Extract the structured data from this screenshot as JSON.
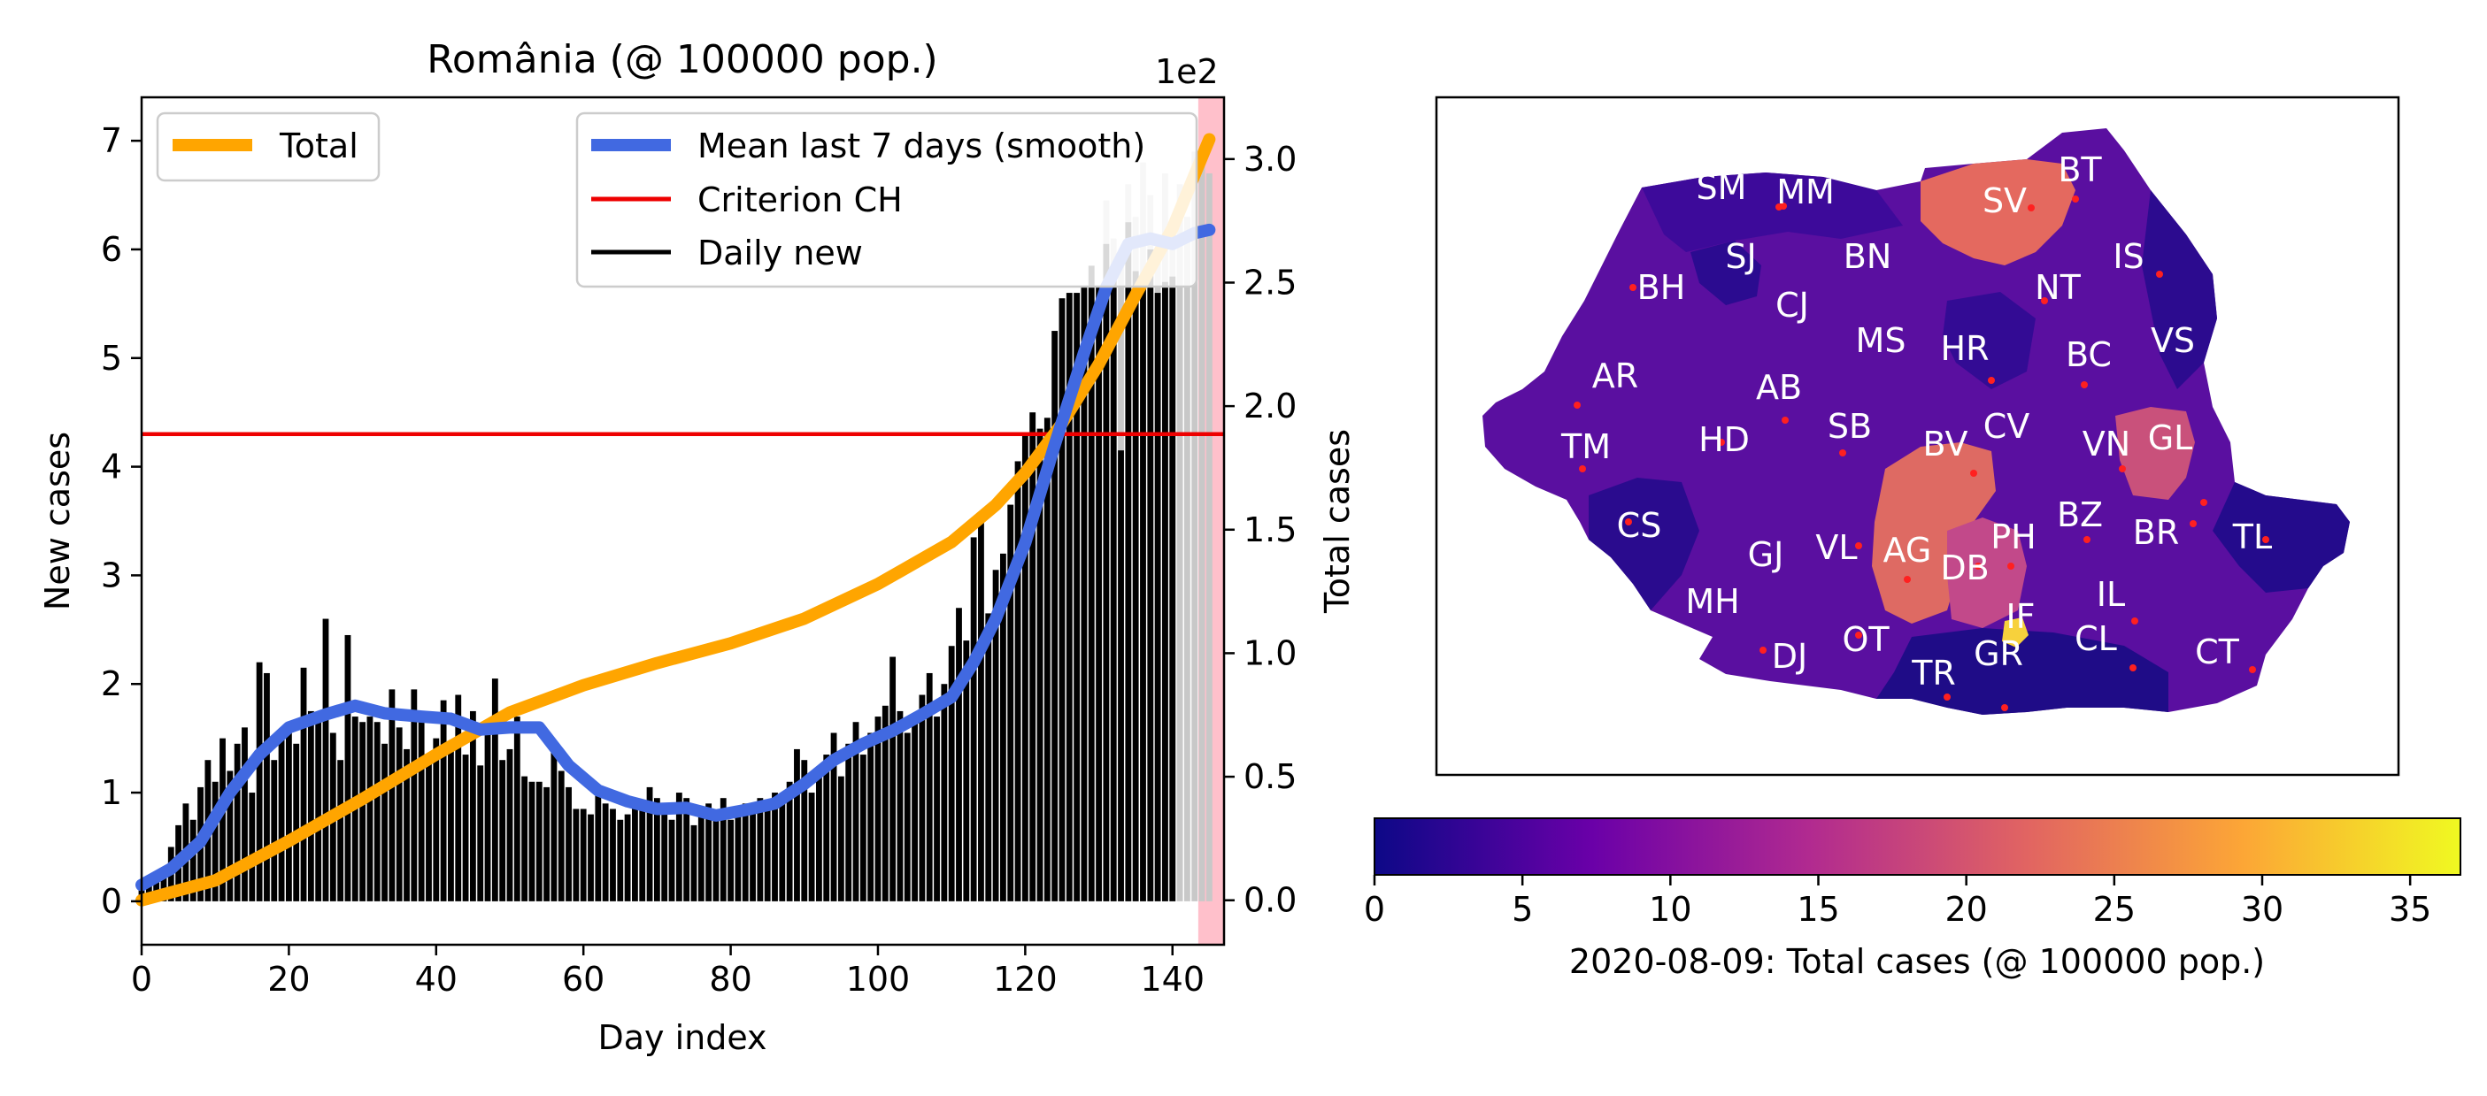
{
  "chart_data": [
    {
      "type": "bar",
      "title": "România (@ 100000 pop.)",
      "xlabel": "Day index",
      "ylabel": "New cases",
      "y2label": "Total cases",
      "y2_offset_label": "1e2",
      "xlim": [
        0,
        147
      ],
      "ylim": [
        -0.4,
        7.4
      ],
      "y2lim": [
        -0.18,
        3.25
      ],
      "xticks": [
        0,
        20,
        40,
        60,
        80,
        100,
        120,
        140
      ],
      "yticks": [
        0,
        1,
        2,
        3,
        4,
        5,
        6,
        7
      ],
      "y2ticks": [
        "0.0",
        "0.5",
        "1.0",
        "1.5",
        "2.0",
        "2.5",
        "3.0"
      ],
      "y2tick_values": [
        0,
        0.5,
        1.0,
        1.5,
        2.0,
        2.5,
        3.0
      ],
      "highlight_xrange": [
        143.5,
        147
      ],
      "highlight_color": "#ffc0cb",
      "legend_left": {
        "placement": "upper-left",
        "entries": [
          {
            "label": "Total",
            "color": "#ffa500"
          }
        ]
      },
      "legend_right": {
        "placement": "upper-right",
        "entries": [
          {
            "label": "Mean last 7 days (smooth)",
            "color": "#4169e1"
          },
          {
            "label": "Criterion CH",
            "color": "#ee0000"
          },
          {
            "label": "Daily new",
            "color": "#000000"
          }
        ]
      },
      "criterion": {
        "name": "Criterion CH",
        "value": 4.3,
        "color": "#ee0000"
      },
      "series": [
        {
          "name": "Daily new",
          "color": "#000000",
          "values": [
            0.1,
            0.15,
            0.2,
            0.25,
            0.5,
            0.7,
            0.9,
            0.75,
            1.05,
            1.3,
            1.1,
            1.5,
            1.2,
            1.45,
            1.6,
            1.0,
            2.2,
            2.1,
            1.3,
            1.5,
            1.6,
            1.45,
            2.15,
            1.75,
            1.65,
            2.6,
            1.55,
            1.3,
            2.45,
            1.7,
            1.65,
            1.7,
            1.65,
            1.45,
            1.95,
            1.6,
            1.4,
            1.95,
            1.7,
            1.3,
            1.5,
            1.85,
            1.45,
            1.9,
            1.35,
            1.75,
            1.25,
            1.55,
            2.05,
            1.3,
            1.4,
            1.7,
            1.15,
            1.1,
            1.1,
            1.05,
            1.4,
            1.2,
            1.05,
            0.85,
            0.85,
            0.8,
            1.05,
            0.9,
            0.85,
            0.75,
            0.8,
            0.95,
            0.85,
            1.05,
            0.95,
            0.85,
            0.75,
            1.0,
            0.95,
            0.7,
            0.85,
            0.9,
            0.8,
            0.95,
            0.75,
            0.85,
            0.9,
            0.9,
            0.95,
            0.85,
            1.0,
            0.95,
            1.1,
            1.4,
            1.3,
            1.0,
            1.2,
            1.35,
            1.55,
            1.15,
            1.45,
            1.65,
            1.35,
            1.55,
            1.7,
            1.8,
            2.25,
            1.75,
            1.55,
            1.65,
            1.9,
            2.1,
            1.7,
            2.0,
            2.35,
            2.7,
            2.4,
            3.35,
            3.55,
            2.65,
            3.05,
            3.2,
            3.65,
            4.05,
            4.3,
            4.5,
            4.35,
            4.45,
            5.25,
            5.55,
            5.6,
            5.6,
            5.65,
            5.85,
            5.65,
            6.05,
            5.8,
            4.15,
            6.25,
            5.8,
            5.75,
            6.0,
            5.6,
            5.7,
            5.75
          ]
        },
        {
          "name": "Daily new (faded)",
          "color": "#c8c8c8",
          "x": [
            131,
            132,
            133,
            134,
            135,
            136,
            137,
            138,
            139,
            140,
            141,
            142,
            143,
            144,
            145
          ],
          "values": [
            6.45,
            6.1,
            5.9,
            6.6,
            6.3,
            6.8,
            6.5,
            6.0,
            6.7,
            6.2,
            6.6,
            6.3,
            6.9,
            6.8,
            6.7
          ]
        },
        {
          "name": "Mean last 7 days (smooth)",
          "color": "#4169e1",
          "x": [
            0,
            4,
            8,
            12,
            16,
            20,
            25,
            29,
            33,
            38,
            42,
            46,
            50,
            54,
            58,
            62,
            66,
            70,
            74,
            78,
            82,
            86,
            90,
            94,
            98,
            102,
            106,
            110,
            113,
            116,
            120,
            124,
            128,
            131,
            134,
            137,
            140,
            143,
            145
          ],
          "values": [
            0.15,
            0.3,
            0.55,
            1.0,
            1.35,
            1.6,
            1.72,
            1.8,
            1.73,
            1.7,
            1.68,
            1.58,
            1.6,
            1.6,
            1.25,
            1.02,
            0.92,
            0.85,
            0.86,
            0.79,
            0.84,
            0.9,
            1.08,
            1.3,
            1.45,
            1.57,
            1.72,
            1.88,
            2.2,
            2.6,
            3.3,
            4.2,
            5.05,
            5.65,
            6.05,
            6.1,
            6.05,
            6.15,
            6.18
          ]
        },
        {
          "name": "Total",
          "color": "#ffa500",
          "axis": "right",
          "x": [
            0,
            10,
            20,
            30,
            40,
            50,
            60,
            70,
            80,
            90,
            100,
            110,
            116,
            120,
            125,
            130,
            135,
            140,
            145
          ],
          "values": [
            0.0,
            0.08,
            0.24,
            0.41,
            0.59,
            0.76,
            0.87,
            0.96,
            1.04,
            1.14,
            1.28,
            1.45,
            1.6,
            1.73,
            1.93,
            2.17,
            2.45,
            2.72,
            3.08
          ]
        }
      ]
    },
    {
      "type": "choropleth",
      "colorbar_label": "2020-08-09: Total cases  (@ 100000 pop.)",
      "colorbar_range": [
        0,
        36.7
      ],
      "colorbar_ticks": [
        0,
        5,
        10,
        15,
        20,
        25,
        30,
        35
      ],
      "colormap": [
        "#0d0887",
        "#6a00a8",
        "#b12a90",
        "#e16462",
        "#fca636",
        "#f0f921"
      ],
      "counties": [
        "SM",
        "MM",
        "SV",
        "BT",
        "SJ",
        "BN",
        "IS",
        "BH",
        "NT",
        "CJ",
        "VS",
        "MS",
        "HR",
        "BC",
        "AR",
        "AB",
        "CV",
        "SB",
        "BV",
        "VN",
        "GL",
        "TM",
        "HD",
        "BZ",
        "CS",
        "PH",
        "BR",
        "TL",
        "VL",
        "AG",
        "DB",
        "GJ",
        "MH",
        "IL",
        "IF",
        "DJ",
        "OT",
        "CL",
        "CT",
        "GR",
        "TR"
      ]
    }
  ]
}
